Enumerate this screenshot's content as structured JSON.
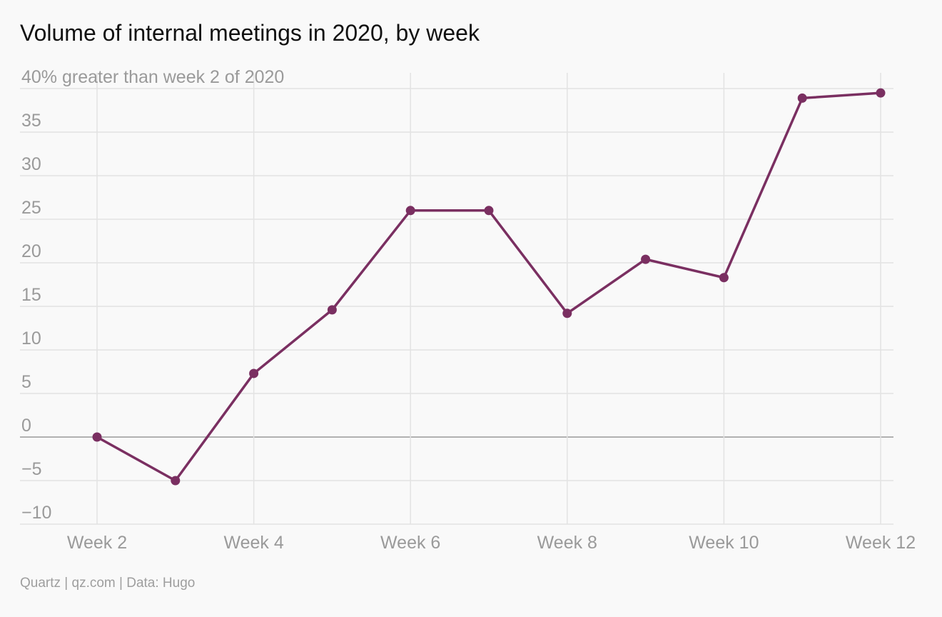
{
  "source": "Quartz | qz.com | Data: Hugo",
  "colors": {
    "series": "#7a2f61",
    "grid": "#e3e3e3",
    "zero_line": "#9a9a9a",
    "axis_text": "#9a9a9a",
    "background": "#f9f9f9"
  },
  "chart_data": {
    "type": "line",
    "title": "Volume of internal meetings in 2020, by week",
    "xlabel": "",
    "ylabel": "",
    "x": [
      2,
      3,
      4,
      5,
      6,
      7,
      8,
      9,
      10,
      11,
      12
    ],
    "x_ticks": [
      2,
      4,
      6,
      8,
      10,
      12
    ],
    "x_tick_labels": [
      "Week 2",
      "Week 4",
      "Week 6",
      "Week 8",
      "Week 10",
      "Week 12"
    ],
    "y_ticks": [
      -10,
      -5,
      0,
      5,
      10,
      15,
      20,
      25,
      30,
      35,
      40
    ],
    "y_tick_labels": [
      "−10",
      "−5",
      "0",
      "5",
      "10",
      "15",
      "20",
      "25",
      "30",
      "35",
      "40% greater than week 2 of 2020"
    ],
    "ylim": [
      -10,
      40
    ],
    "xlim": [
      2,
      12
    ],
    "grid": true,
    "legend": "none",
    "series": [
      {
        "values": [
          0,
          -5,
          7.3,
          14.6,
          26,
          26,
          14.2,
          20.4,
          18.3,
          38.9,
          39.5
        ]
      }
    ]
  }
}
